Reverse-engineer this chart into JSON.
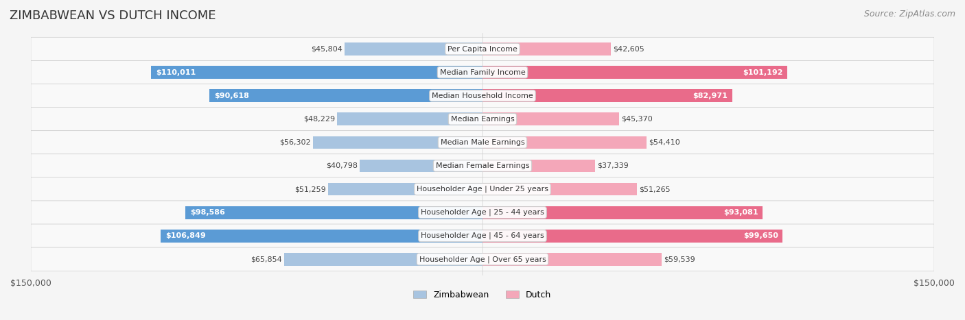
{
  "title": "ZIMBABWEAN VS DUTCH INCOME",
  "source": "Source: ZipAtlas.com",
  "categories": [
    "Per Capita Income",
    "Median Family Income",
    "Median Household Income",
    "Median Earnings",
    "Median Male Earnings",
    "Median Female Earnings",
    "Householder Age | Under 25 years",
    "Householder Age | 25 - 44 years",
    "Householder Age | 45 - 64 years",
    "Householder Age | Over 65 years"
  ],
  "zimbabwean_values": [
    45804,
    110011,
    90618,
    48229,
    56302,
    40798,
    51259,
    98586,
    106849,
    65854
  ],
  "dutch_values": [
    42605,
    101192,
    82971,
    45370,
    54410,
    37339,
    51265,
    93081,
    99650,
    59539
  ],
  "zimbabwean_labels": [
    "$45,804",
    "$110,011",
    "$90,618",
    "$48,229",
    "$56,302",
    "$40,798",
    "$51,259",
    "$98,586",
    "$106,849",
    "$65,854"
  ],
  "dutch_labels": [
    "$42,605",
    "$101,192",
    "$82,971",
    "$45,370",
    "$54,410",
    "$37,339",
    "$51,265",
    "$93,081",
    "$99,650",
    "$59,539"
  ],
  "max_value": 150000,
  "zimbabwean_color_light": "#a8c4e0",
  "zimbabwean_color_dark": "#5b9bd5",
  "dutch_color_light": "#f4a7b9",
  "dutch_color_dark": "#e96b8a",
  "background_color": "#f5f5f5",
  "row_bg_color": "#ffffff",
  "label_threshold": 80000,
  "bar_height": 0.55
}
